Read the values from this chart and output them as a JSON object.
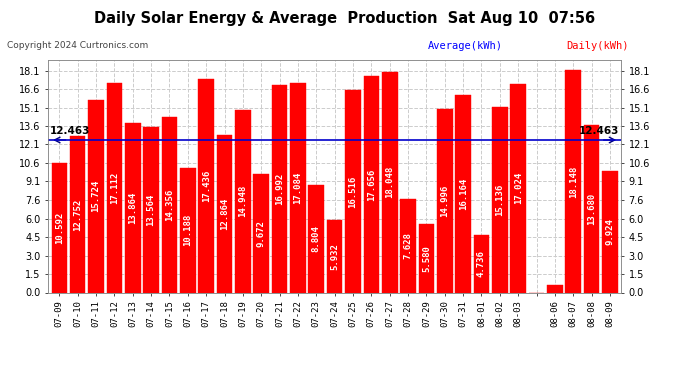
{
  "title": "Daily Solar Energy & Average  Production  Sat Aug 10  07:56",
  "copyright": "Copyright 2024 Curtronics.com",
  "legend_avg": "Average(kWh)",
  "legend_daily": "Daily(kWh)",
  "average_value": 12.463,
  "categories": [
    "07-09",
    "07-10",
    "07-11",
    "07-12",
    "07-13",
    "07-14",
    "07-15",
    "07-16",
    "07-17",
    "07-18",
    "07-19",
    "07-20",
    "07-21",
    "07-22",
    "07-23",
    "07-24",
    "07-25",
    "07-26",
    "07-27",
    "07-28",
    "07-29",
    "07-30",
    "07-31",
    "08-01",
    "08-02",
    "08-03",
    "",
    "08-06",
    "08-07",
    "08-08",
    "08-09"
  ],
  "values": [
    10.592,
    12.752,
    15.724,
    17.112,
    13.864,
    13.564,
    14.356,
    10.188,
    17.436,
    12.864,
    14.948,
    9.672,
    16.992,
    17.084,
    8.804,
    5.932,
    16.516,
    17.656,
    18.048,
    7.628,
    5.58,
    14.996,
    16.164,
    4.736,
    15.136,
    17.024,
    0.0,
    0.636,
    18.148,
    13.68,
    9.924
  ],
  "bar_color": "#ff0000",
  "avg_line_color": "#0000cc",
  "avg_arrow_color": "#000080",
  "avg_label_color": "#000000",
  "title_color": "#000000",
  "copyright_color": "#444444",
  "legend_avg_color": "#0000ff",
  "legend_daily_color": "#ff0000",
  "yticks": [
    0.0,
    1.5,
    3.0,
    4.5,
    6.0,
    7.6,
    9.1,
    10.6,
    12.1,
    13.6,
    15.1,
    16.6,
    18.1
  ],
  "ymax": 19.0,
  "bg_color": "#ffffff",
  "grid_color": "#cccccc",
  "value_label_color": "#ffffff",
  "value_label_fontsize": 6.5
}
